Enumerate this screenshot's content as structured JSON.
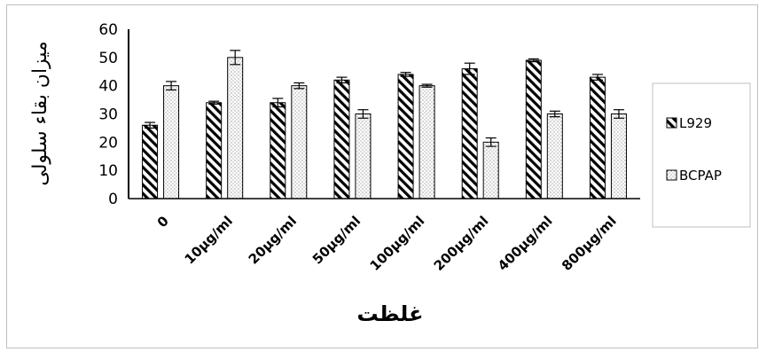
{
  "chart_data": {
    "type": "bar",
    "title": "",
    "xlabel": "غلظت",
    "ylabel": "میزان بقاء سلولی",
    "ylim": [
      0,
      60
    ],
    "yticks": [
      0,
      10,
      20,
      30,
      40,
      50,
      60
    ],
    "grid": false,
    "legend_position": "right",
    "categories": [
      "0",
      "10µg/ml",
      "20µg/ml",
      "50µg/ml",
      "100µg/ml",
      "200µg/ml",
      "400µg/ml",
      "800µg/ml"
    ],
    "series": [
      {
        "name": "L929",
        "pattern": "diagonal-hatch",
        "values": [
          26,
          34,
          34,
          42,
          44,
          46,
          49,
          43
        ],
        "errors": [
          1,
          0.5,
          1.5,
          1,
          0.7,
          2,
          0.5,
          1
        ]
      },
      {
        "name": "BCPAP",
        "pattern": "dots",
        "values": [
          40,
          50,
          40,
          30,
          40,
          20,
          30,
          30
        ],
        "errors": [
          1.5,
          2.5,
          1,
          1.5,
          0.5,
          1.5,
          1,
          1.5
        ]
      }
    ]
  }
}
